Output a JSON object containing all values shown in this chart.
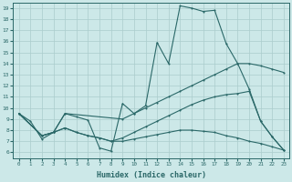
{
  "xlabel": "Humidex (Indice chaleur)",
  "bg_color": "#cce8e8",
  "line_color": "#2a6868",
  "grid_color": "#aacccc",
  "xlim": [
    -0.5,
    23.5
  ],
  "ylim": [
    5.5,
    19.5
  ],
  "xticks": [
    0,
    1,
    2,
    3,
    4,
    5,
    6,
    7,
    8,
    9,
    10,
    11,
    12,
    13,
    14,
    15,
    16,
    17,
    18,
    19,
    20,
    21,
    22,
    23
  ],
  "yticks": [
    6,
    7,
    8,
    9,
    10,
    11,
    12,
    13,
    14,
    15,
    16,
    17,
    18,
    19
  ],
  "line1_x": [
    0,
    1,
    2,
    3,
    4,
    5,
    6,
    7,
    8,
    9,
    10,
    11,
    12,
    13,
    14,
    15,
    16,
    17,
    18,
    19,
    20,
    21,
    22,
    23
  ],
  "line1_y": [
    9.5,
    8.8,
    7.2,
    7.8,
    9.5,
    9.2,
    8.9,
    6.4,
    6.1,
    10.4,
    9.5,
    10.2,
    15.9,
    14.0,
    19.2,
    19.0,
    18.7,
    18.8,
    15.8,
    14.0,
    11.7,
    8.8,
    7.4,
    6.2
  ],
  "line2_x": [
    0,
    2,
    3,
    4,
    9,
    10,
    11,
    12,
    13,
    14,
    15,
    16,
    17,
    18,
    19,
    20,
    21,
    22,
    23
  ],
  "line2_y": [
    9.5,
    7.5,
    7.8,
    9.5,
    9.0,
    9.5,
    10.0,
    10.5,
    11.0,
    11.5,
    12.0,
    12.5,
    13.0,
    13.5,
    14.0,
    14.0,
    13.8,
    13.5,
    13.2
  ],
  "line3_x": [
    0,
    2,
    3,
    4,
    5,
    6,
    7,
    8,
    9,
    10,
    11,
    12,
    13,
    14,
    15,
    16,
    17,
    18,
    19,
    20,
    21,
    22,
    23
  ],
  "line3_y": [
    9.5,
    7.5,
    7.8,
    8.2,
    7.8,
    7.5,
    7.3,
    7.0,
    7.0,
    7.2,
    7.4,
    7.6,
    7.8,
    8.0,
    8.0,
    7.9,
    7.8,
    7.5,
    7.3,
    7.0,
    6.8,
    6.5,
    6.2
  ],
  "line4_x": [
    0,
    2,
    3,
    4,
    5,
    6,
    7,
    8,
    9,
    10,
    11,
    12,
    13,
    14,
    15,
    16,
    17,
    18,
    19,
    20,
    21,
    22,
    23
  ],
  "line4_y": [
    9.5,
    7.5,
    7.8,
    8.2,
    7.8,
    7.5,
    7.3,
    7.0,
    7.3,
    7.8,
    8.3,
    8.8,
    9.3,
    9.8,
    10.3,
    10.7,
    11.0,
    11.2,
    11.3,
    11.5,
    8.8,
    7.4,
    6.2
  ]
}
